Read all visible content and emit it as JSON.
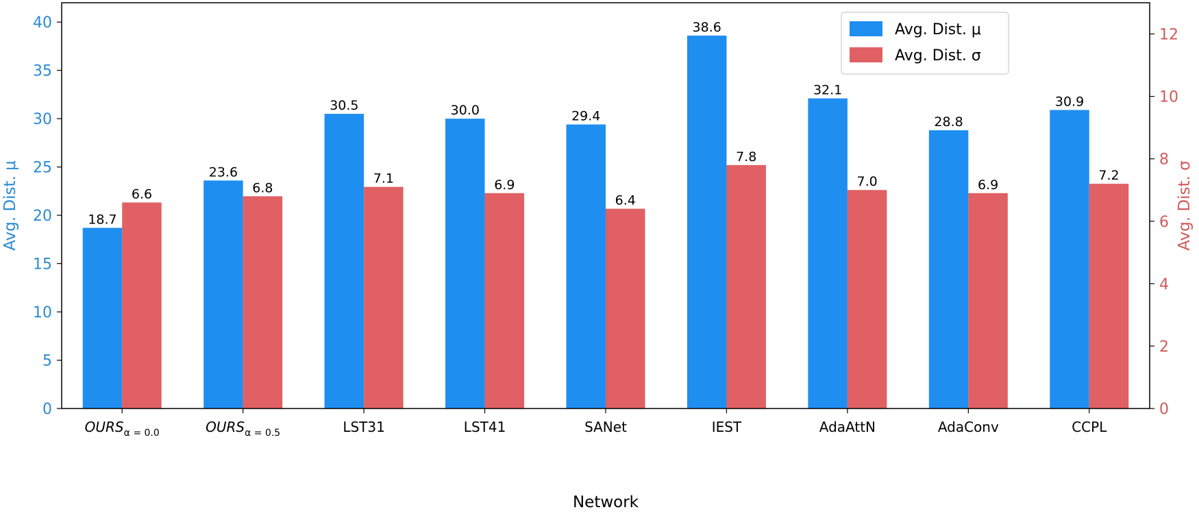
{
  "chart_data": {
    "type": "bar",
    "xlabel": "Network",
    "ylabel_left": "Avg. Dist. μ",
    "ylabel_right": "Avg. Dist. σ",
    "categories": [
      {
        "base": "OURS",
        "sub": "α = 0.0"
      },
      {
        "base": "OURS",
        "sub": "α = 0.5"
      },
      {
        "base": "LST31",
        "sub": ""
      },
      {
        "base": "LST41",
        "sub": ""
      },
      {
        "base": "SANet",
        "sub": ""
      },
      {
        "base": "IEST",
        "sub": ""
      },
      {
        "base": "AdaAttN",
        "sub": ""
      },
      {
        "base": "AdaConv",
        "sub": ""
      },
      {
        "base": "CCPL",
        "sub": ""
      }
    ],
    "series": [
      {
        "name": "Avg. Dist. μ",
        "axis": "left",
        "color": "#1f8ef1",
        "values": [
          18.7,
          23.6,
          30.5,
          30.0,
          29.4,
          38.6,
          32.1,
          28.8,
          30.9
        ],
        "labels": [
          "18.7",
          "23.6",
          "30.5",
          "30.0",
          "29.4",
          "38.6",
          "32.1",
          "28.8",
          "30.9"
        ]
      },
      {
        "name": "Avg. Dist. σ",
        "axis": "right",
        "color": "#e06063",
        "values": [
          6.6,
          6.8,
          7.1,
          6.9,
          6.4,
          7.8,
          7.0,
          6.9,
          7.2
        ],
        "labels": [
          "6.6",
          "6.8",
          "7.1",
          "6.9",
          "6.4",
          "7.8",
          "7.0",
          "6.9",
          "7.2"
        ]
      }
    ],
    "ylim_left": [
      0,
      42
    ],
    "yticks_left": [
      "0",
      "5",
      "10",
      "15",
      "20",
      "25",
      "30",
      "35",
      "40"
    ],
    "ylim_right": [
      0,
      13
    ],
    "yticks_right": [
      "0",
      "2",
      "4",
      "6",
      "8",
      "10",
      "12"
    ],
    "left_axis_color": "#2a8ad4",
    "right_axis_color": "#d05a5a",
    "grid": false,
    "legend_position": "top-right"
  }
}
